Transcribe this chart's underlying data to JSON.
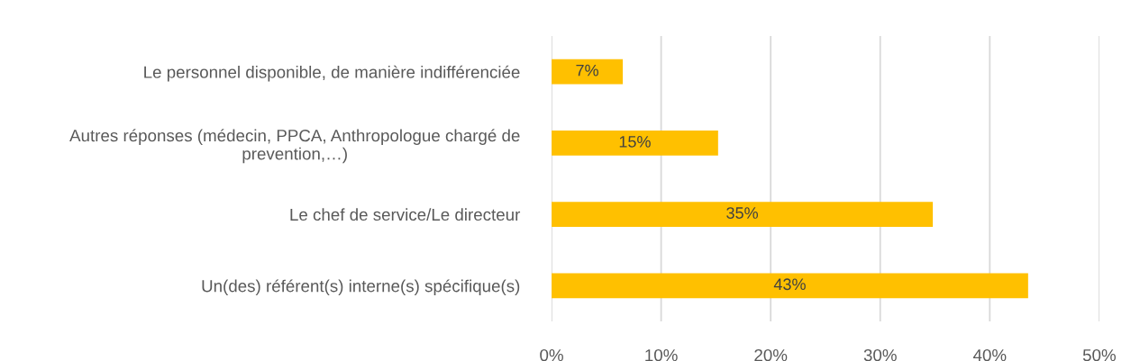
{
  "chart_data": {
    "type": "bar",
    "orientation": "horizontal",
    "categories": [
      "Le personnel disponible, de manière indifférenciée",
      "Autres réponses (médecin, PPCA, Anthropologue chargé de\nprevention,…)",
      "Le chef de service/Le directeur",
      "Un(des) référent(s) interne(s) spécifique(s)"
    ],
    "values": [
      6.5,
      15.2,
      34.8,
      43.5
    ],
    "value_labels": [
      "7%",
      "15%",
      "35%",
      "43%"
    ],
    "color": "#ffc000",
    "xlim": [
      0,
      50
    ],
    "xticks": [
      {
        "value": 0,
        "label": "0%"
      },
      {
        "value": 10,
        "label": "10%"
      },
      {
        "value": 20,
        "label": "20%"
      },
      {
        "value": 30,
        "label": "30%"
      },
      {
        "value": 40,
        "label": "40%"
      },
      {
        "value": 50,
        "label": "50%"
      }
    ],
    "grid": "x"
  }
}
